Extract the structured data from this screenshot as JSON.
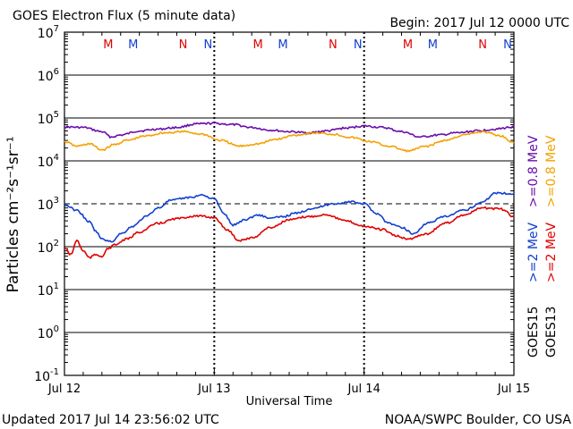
{
  "header": {
    "title": "GOES Electron Flux (5 minute data)",
    "begin": "Begin: 2017 Jul 12 0000 UTC"
  },
  "footer": {
    "updated": "Updated 2017 Jul 14 23:56:02 UTC",
    "credit": "NOAA/SWPC Boulder, CO USA"
  },
  "colors": {
    "goes15_high": "#6a0dad",
    "goes13_high": "#f5a000",
    "goes15_low": "#1040d0",
    "goes13_low": "#e00000",
    "marker_red": "#e00000",
    "marker_blue": "#1040d0"
  },
  "chart_data": {
    "type": "line",
    "title": "GOES Electron Flux (5 minute data)",
    "xlabel": "Universal Time",
    "ylabel": "Particles cm⁻²s⁻¹sr⁻¹",
    "y_scale": "log",
    "ylim": [
      0.1,
      10000000
    ],
    "xlim": [
      "2017-07-12 00:00",
      "2017-07-15 00:00"
    ],
    "x_ticks": [
      "Jul 12",
      "Jul 13",
      "Jul 14",
      "Jul 15"
    ],
    "y_ticks": [
      {
        "value": 10000000,
        "base": "10",
        "exp": "7"
      },
      {
        "value": 1000000,
        "base": "10",
        "exp": "6"
      },
      {
        "value": 100000,
        "base": "10",
        "exp": "5"
      },
      {
        "value": 10000,
        "base": "10",
        "exp": "4"
      },
      {
        "value": 1000,
        "base": "10",
        "exp": "3"
      },
      {
        "value": 100,
        "base": "10",
        "exp": "2"
      },
      {
        "value": 10,
        "base": "10",
        "exp": "1"
      },
      {
        "value": 1,
        "base": "10",
        "exp": "0"
      },
      {
        "value": 0.1,
        "base": "10",
        "exp": "-1"
      }
    ],
    "threshold": {
      "value": 1000,
      "style": "dashed"
    },
    "day_markers": [
      "2017-07-13 00:00",
      "2017-07-14 00:00"
    ],
    "local_time_markers": [
      {
        "label": "M",
        "color": "red",
        "time": "2017-07-12 07:00"
      },
      {
        "label": "M",
        "color": "blue",
        "time": "2017-07-12 11:00"
      },
      {
        "label": "N",
        "color": "red",
        "time": "2017-07-12 19:00"
      },
      {
        "label": "N",
        "color": "blue",
        "time": "2017-07-12 23:00"
      },
      {
        "label": "M",
        "color": "red",
        "time": "2017-07-13 07:00"
      },
      {
        "label": "M",
        "color": "blue",
        "time": "2017-07-13 11:00"
      },
      {
        "label": "N",
        "color": "red",
        "time": "2017-07-13 19:00"
      },
      {
        "label": "N",
        "color": "blue",
        "time": "2017-07-13 23:00"
      },
      {
        "label": "M",
        "color": "red",
        "time": "2017-07-14 07:00"
      },
      {
        "label": "M",
        "color": "blue",
        "time": "2017-07-14 11:00"
      },
      {
        "label": "N",
        "color": "red",
        "time": "2017-07-14 19:00"
      },
      {
        "label": "N",
        "color": "blue",
        "time": "2017-07-14 23:00"
      }
    ],
    "legend": {
      "placement": "right",
      "group_high": {
        "label_goes15": "GOES15",
        "label_goes13": "GOES13"
      },
      "entries": [
        {
          "text": ">=0.8 MeV",
          "color": "#6a0dad",
          "row": "top",
          "col": 0
        },
        {
          "text": ">=0.8 MeV",
          "color": "#f5a000",
          "row": "top",
          "col": 1
        },
        {
          "text": ">=2 MeV",
          "color": "#1040d0",
          "row": "mid",
          "col": 0
        },
        {
          "text": ">=2 MeV",
          "color": "#e00000",
          "row": "mid",
          "col": 1
        },
        {
          "text": "GOES15",
          "color": "#000000",
          "row": "bottom",
          "col": 0
        },
        {
          "text": "GOES13",
          "color": "#000000",
          "row": "bottom",
          "col": 1
        }
      ]
    },
    "series": [
      {
        "name": "GOES15 >=0.8 MeV",
        "color": "#6a0dad",
        "x": [
          "2017-07-12 00:00",
          "2017-07-12 03:00",
          "2017-07-12 06:00",
          "2017-07-12 07:30",
          "2017-07-12 09:00",
          "2017-07-12 12:00",
          "2017-07-12 15:00",
          "2017-07-12 18:00",
          "2017-07-12 21:00",
          "2017-07-13 00:00",
          "2017-07-13 03:00",
          "2017-07-13 06:00",
          "2017-07-13 09:00",
          "2017-07-13 12:00",
          "2017-07-13 15:00",
          "2017-07-13 18:00",
          "2017-07-13 21:00",
          "2017-07-14 00:00",
          "2017-07-14 03:00",
          "2017-07-14 06:00",
          "2017-07-14 09:00",
          "2017-07-14 12:00",
          "2017-07-14 15:00",
          "2017-07-14 18:00",
          "2017-07-14 21:00",
          "2017-07-15 00:00"
        ],
        "y": [
          62000,
          60000,
          48000,
          36000,
          40000,
          50000,
          55000,
          60000,
          72000,
          75000,
          70000,
          60000,
          52000,
          48000,
          45000,
          50000,
          58000,
          65000,
          60000,
          48000,
          36000,
          40000,
          45000,
          50000,
          55000,
          62000
        ]
      },
      {
        "name": "GOES13 >=0.8 MeV",
        "color": "#f5a000",
        "x": [
          "2017-07-12 00:00",
          "2017-07-12 02:00",
          "2017-07-12 04:00",
          "2017-07-12 06:00",
          "2017-07-12 08:00",
          "2017-07-12 10:00",
          "2017-07-12 13:00",
          "2017-07-12 16:00",
          "2017-07-12 19:00",
          "2017-07-12 22:00",
          "2017-07-13 01:00",
          "2017-07-13 04:00",
          "2017-07-13 07:00",
          "2017-07-13 10:00",
          "2017-07-13 13:00",
          "2017-07-13 16:00",
          "2017-07-13 19:00",
          "2017-07-13 22:00",
          "2017-07-14 01:00",
          "2017-07-14 04:00",
          "2017-07-14 07:00",
          "2017-07-14 10:00",
          "2017-07-14 13:00",
          "2017-07-14 16:00",
          "2017-07-14 19:00",
          "2017-07-14 22:00",
          "2017-07-15 00:00"
        ],
        "y": [
          28000,
          22000,
          25000,
          18000,
          24000,
          30000,
          38000,
          45000,
          48000,
          42000,
          30000,
          22000,
          25000,
          32000,
          40000,
          45000,
          42000,
          35000,
          28000,
          22000,
          17000,
          22000,
          30000,
          40000,
          48000,
          38000,
          26000
        ]
      },
      {
        "name": "GOES15 >=2 MeV",
        "color": "#1040d0",
        "x": [
          "2017-07-12 00:00",
          "2017-07-12 02:00",
          "2017-07-12 04:00",
          "2017-07-12 05:00",
          "2017-07-12 06:00",
          "2017-07-12 07:30",
          "2017-07-12 09:00",
          "2017-07-12 11:00",
          "2017-07-12 13:00",
          "2017-07-12 15:00",
          "2017-07-12 17:00",
          "2017-07-12 20:00",
          "2017-07-12 22:00",
          "2017-07-13 00:00",
          "2017-07-13 01:30",
          "2017-07-13 03:00",
          "2017-07-13 05:00",
          "2017-07-13 07:00",
          "2017-07-13 09:00",
          "2017-07-13 11:00",
          "2017-07-13 13:00",
          "2017-07-13 16:00",
          "2017-07-13 19:00",
          "2017-07-13 22:00",
          "2017-07-14 00:00",
          "2017-07-14 02:00",
          "2017-07-14 04:00",
          "2017-07-14 06:00",
          "2017-07-14 08:00",
          "2017-07-14 10:00",
          "2017-07-14 13:00",
          "2017-07-14 16:00",
          "2017-07-14 19:00",
          "2017-07-14 21:00",
          "2017-07-15 00:00"
        ],
        "y": [
          950,
          700,
          380,
          230,
          150,
          130,
          200,
          300,
          500,
          800,
          1200,
          1400,
          1600,
          1300,
          600,
          320,
          430,
          550,
          460,
          500,
          600,
          800,
          1000,
          1100,
          1000,
          600,
          350,
          280,
          200,
          350,
          500,
          700,
          1100,
          1800,
          1700
        ]
      },
      {
        "name": "GOES13 >=2 MeV",
        "color": "#e00000",
        "x": [
          "2017-07-12 00:00",
          "2017-07-12 01:00",
          "2017-07-12 02:00",
          "2017-07-12 03:00",
          "2017-07-12 04:00",
          "2017-07-12 05:00",
          "2017-07-12 06:00",
          "2017-07-12 07:00",
          "2017-07-12 08:00",
          "2017-07-12 10:00",
          "2017-07-12 12:00",
          "2017-07-12 15:00",
          "2017-07-12 18:00",
          "2017-07-12 21:00",
          "2017-07-13 00:00",
          "2017-07-13 02:00",
          "2017-07-13 04:00",
          "2017-07-13 06:00",
          "2017-07-13 09:00",
          "2017-07-13 12:00",
          "2017-07-13 15:00",
          "2017-07-13 18:00",
          "2017-07-13 21:00",
          "2017-07-14 00:00",
          "2017-07-14 03:00",
          "2017-07-14 05:00",
          "2017-07-14 07:00",
          "2017-07-14 10:00",
          "2017-07-14 13:00",
          "2017-07-14 16:00",
          "2017-07-14 19:00",
          "2017-07-14 22:00",
          "2017-07-15 00:00"
        ],
        "y": [
          95,
          65,
          140,
          80,
          55,
          65,
          60,
          90,
          110,
          150,
          220,
          350,
          450,
          520,
          480,
          250,
          140,
          160,
          280,
          420,
          500,
          560,
          400,
          300,
          250,
          180,
          150,
          200,
          350,
          550,
          800,
          750,
          500
        ]
      }
    ]
  }
}
